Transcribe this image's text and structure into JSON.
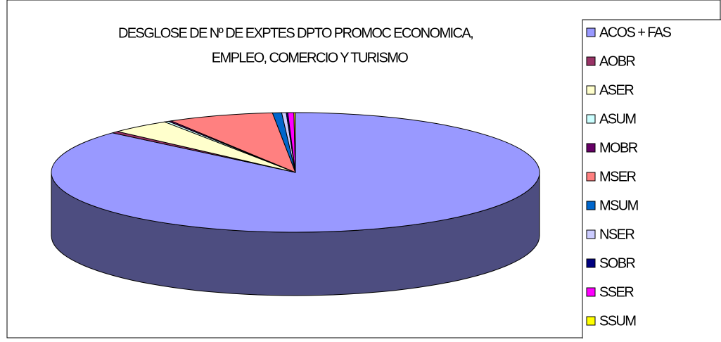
{
  "chart_data": {
    "type": "pie3d",
    "title": [
      "DESGLOSE DE Nº DE EXPTES DPTO PROMOC ECONOMICA,",
      "EMPLEO, COMERCIO Y TURISMO"
    ],
    "categories": [
      "ACOS + FAS",
      "AOBR",
      "ASER",
      "ASUM",
      "MOBR",
      "MSER",
      "MSUM",
      "NSER",
      "SOBR",
      "SSER",
      "SSUM"
    ],
    "values": [
      86.5,
      0.5,
      4,
      0.3,
      0.2,
      7,
      0.6,
      0.3,
      0.1,
      0.4,
      0.1
    ],
    "colors": [
      "#9999ff",
      "#993366",
      "#ffffcc",
      "#ccffff",
      "#660066",
      "#ff8080",
      "#0066cc",
      "#ccccff",
      "#000080",
      "#ff00ff",
      "#ffff00"
    ],
    "legend": "right"
  }
}
